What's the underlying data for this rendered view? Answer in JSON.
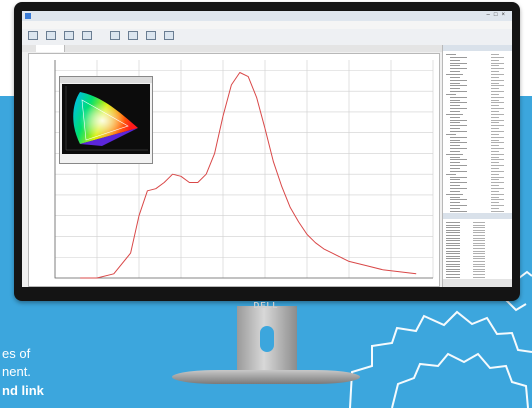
{
  "background": {
    "panel_color": "#3ca6dd",
    "page_color": "#ffffff",
    "gear_color": "#ffffff"
  },
  "captions": [
    {
      "text": "es of",
      "bold": false
    },
    {
      "text": "nent.",
      "bold": false
    },
    {
      "text": "nd link",
      "bold": true
    }
  ],
  "monitor": {
    "brand": "DELL",
    "bezel_color": "#141414"
  },
  "app": {
    "title": "",
    "menu": [],
    "toolbar": [
      {
        "icon": "open-icon"
      },
      {
        "icon": "save-icon"
      },
      {
        "icon": "capture-icon"
      },
      {
        "icon": "settings-icon"
      },
      {
        "icon": "measure-icon"
      },
      {
        "icon": "calibrate-icon"
      },
      {
        "icon": "export-icon"
      },
      {
        "icon": "print-icon"
      }
    ],
    "active_tab_color": "#c00000",
    "side_panel_rows": 56
  },
  "chart_data": {
    "type": "line",
    "title": "",
    "xlabel": "",
    "ylabel": "",
    "xlim": [
      350,
      800
    ],
    "ylim": [
      0,
      1.05
    ],
    "grid": true,
    "series": [
      {
        "color": "#d94848",
        "x": [
          380,
          400,
          420,
          440,
          450,
          460,
          470,
          480,
          490,
          500,
          510,
          520,
          530,
          540,
          550,
          560,
          570,
          580,
          590,
          600,
          610,
          620,
          630,
          640,
          650,
          660,
          670,
          680,
          700,
          720,
          740,
          760,
          780
        ],
        "y": [
          0.0,
          0.0,
          0.02,
          0.12,
          0.3,
          0.42,
          0.43,
          0.46,
          0.5,
          0.49,
          0.46,
          0.46,
          0.5,
          0.6,
          0.78,
          0.93,
          0.99,
          0.97,
          0.87,
          0.72,
          0.56,
          0.44,
          0.34,
          0.27,
          0.21,
          0.17,
          0.14,
          0.12,
          0.08,
          0.06,
          0.04,
          0.03,
          0.02
        ]
      }
    ]
  }
}
